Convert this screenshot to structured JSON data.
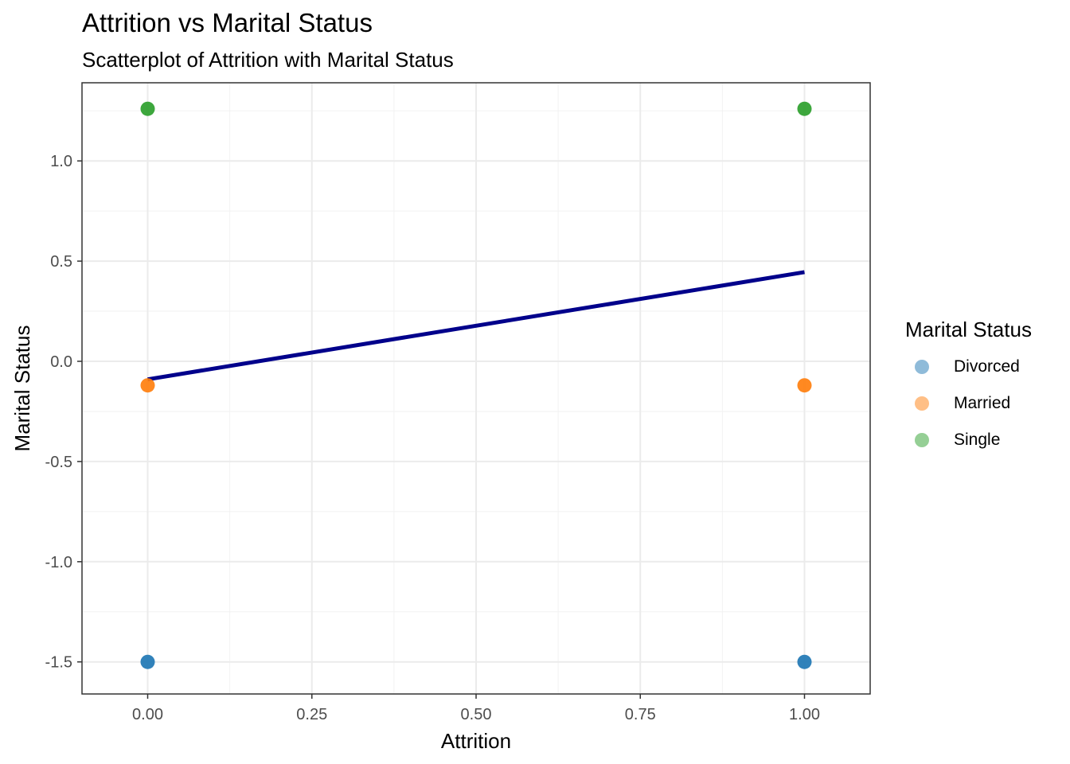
{
  "chart_data": {
    "type": "scatter",
    "title": "Attrition vs Marital Status",
    "subtitle": "Scatterplot of Attrition with Marital Status",
    "xlabel": "Attrition",
    "ylabel": "Marital Status",
    "xlim": [
      -0.1,
      1.1
    ],
    "ylim": [
      -1.66,
      1.39
    ],
    "x_ticks": [
      0.0,
      0.25,
      0.5,
      0.75,
      1.0
    ],
    "x_tick_labels": [
      "0.00",
      "0.25",
      "0.50",
      "0.75",
      "1.00"
    ],
    "y_ticks": [
      -1.5,
      -1.0,
      -0.5,
      0.0,
      0.5,
      1.0
    ],
    "y_tick_labels": [
      "-1.5",
      "-1.0",
      "-0.5",
      "0.0",
      "0.5",
      "1.0"
    ],
    "grid": true,
    "legend": {
      "title": "Marital Status",
      "placement": "right",
      "entries": [
        {
          "label": "Divorced",
          "color": "#1f77b4"
        },
        {
          "label": "Married",
          "color": "#ff7f0e"
        },
        {
          "label": "Single",
          "color": "#2ca02c"
        }
      ]
    },
    "series": [
      {
        "name": "Divorced",
        "color": "#1f77b4",
        "points": [
          {
            "x": 0,
            "y": -1.5
          },
          {
            "x": 1,
            "y": -1.5
          }
        ]
      },
      {
        "name": "Married",
        "color": "#ff7f0e",
        "points": [
          {
            "x": 0,
            "y": -0.12
          },
          {
            "x": 1,
            "y": -0.12
          }
        ]
      },
      {
        "name": "Single",
        "color": "#2ca02c",
        "points": [
          {
            "x": 0,
            "y": 1.26
          },
          {
            "x": 1,
            "y": 1.26
          }
        ]
      }
    ],
    "trend_line": {
      "color": "#00008b",
      "points": [
        {
          "x": 0,
          "y": -0.09
        },
        {
          "x": 1,
          "y": 0.445
        }
      ]
    }
  }
}
